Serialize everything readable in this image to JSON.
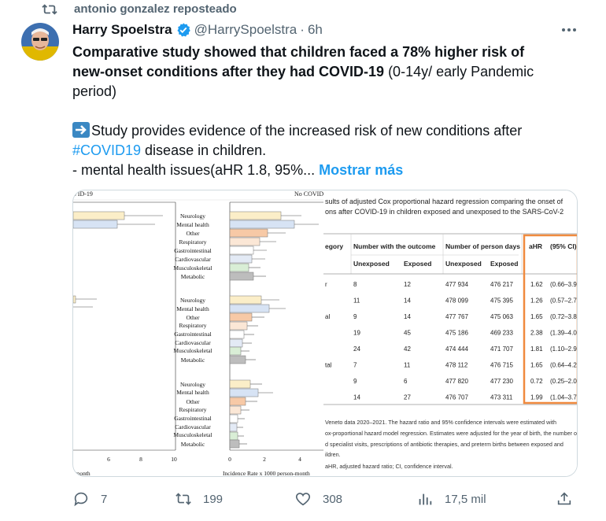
{
  "repost": {
    "text": "antonio gonzalez reposteado"
  },
  "author": {
    "name": "Harry Spoelstra",
    "handle": "@HarrySpoelstra",
    "separator": "·",
    "time": "6h"
  },
  "tweet": {
    "line1": "Comparative study showed that children faced a 78% higher risk of",
    "line2_bold": "new-onset conditions after they had COVID-19",
    "line2_rest": " (0-14y/ early Pandemic",
    "line3": "period)",
    "line4": "Study provides evidence of the increased risk of new conditions after",
    "hashtag": "#COVID19",
    "line5_rest": " disease in children.",
    "line6": "- mental health issues(aHR 1.8, 95%...",
    "show_more": "Mostrar más"
  },
  "media": {
    "left_panel": {
      "top_label_left": "VID-19",
      "top_label_right": "No COVID",
      "group_labels": [
        "Neurology",
        "Mental health",
        "Other",
        "Respiratory",
        "Gastrointestinal",
        "Cardiovascular",
        "Musculoskeletal",
        "Metabolic"
      ],
      "left_ticks": [
        "6",
        "8",
        "10"
      ],
      "right_ticks": [
        "0",
        "2",
        "4"
      ],
      "xlabel_left": "-month",
      "xlabel_right": "Incidence Rate x 1000 person-month"
    },
    "table": {
      "caption_line1": "sults of adjusted Cox proportional hazard regression comparing the onset of",
      "caption_line2": "ons after COVID-19 in children exposed and unexposed to the SARS-CoV-2",
      "header_category": "egory",
      "header_outcome": "Number with the outcome",
      "header_persondays": "Number of person days",
      "header_ahr": "aHR",
      "header_ci": "(95% CI)",
      "sub_unexposed": "Unexposed",
      "sub_exposed": "Exposed",
      "rows": [
        {
          "cat": "r",
          "u": "8",
          "e": "12",
          "pu": "477 934",
          "pe": "476 217",
          "ahr": "1.62",
          "ci": "(0.66–3.9"
        },
        {
          "cat": "",
          "u": "11",
          "e": "14",
          "pu": "478 099",
          "pe": "475 395",
          "ahr": "1.26",
          "ci": "(0.57–2.7"
        },
        {
          "cat": "al",
          "u": "9",
          "e": "14",
          "pu": "477 767",
          "pe": "475 063",
          "ahr": "1.65",
          "ci": "(0.72–3.8"
        },
        {
          "cat": "",
          "u": "19",
          "e": "45",
          "pu": "475 186",
          "pe": "469 233",
          "ahr": "2.38",
          "ci": "(1.39–4.0"
        },
        {
          "cat": "",
          "u": "24",
          "e": "42",
          "pu": "474 444",
          "pe": "471 707",
          "ahr": "1.81",
          "ci": "(1.10–2.9"
        },
        {
          "cat": "tal",
          "u": "7",
          "e": "11",
          "pu": "478 112",
          "pe": "476 715",
          "ahr": "1.65",
          "ci": "(0.64–4.2"
        },
        {
          "cat": "",
          "u": "9",
          "e": "6",
          "pu": "477 820",
          "pe": "477 230",
          "ahr": "0.72",
          "ci": "(0.25–2.0"
        },
        {
          "cat": "",
          "u": "14",
          "e": "27",
          "pu": "476 707",
          "pe": "473 311",
          "ahr": "1.99",
          "ci": "(1.04–3.7"
        }
      ],
      "foot1": "Veneto data 2020–2021. The hazard ratio and 95% confidence intervals were estimated with",
      "foot2": "ox-proportional hazard model regression. Estimates were adjusted for the year of birth, the number of",
      "foot3": "d specialist visits, prescriptions of antibiotic therapies, and preterm births between exposed and",
      "foot4": "ildren.",
      "foot5": "aHR, adjusted hazard ratio; CI, confidence interval."
    }
  },
  "actions": {
    "replies": "7",
    "reposts": "199",
    "likes": "308",
    "views": "17,5 mil"
  },
  "colors": {
    "accent": "#1d9bf0",
    "muted": "#536471",
    "highlight": "#f08a3e"
  }
}
